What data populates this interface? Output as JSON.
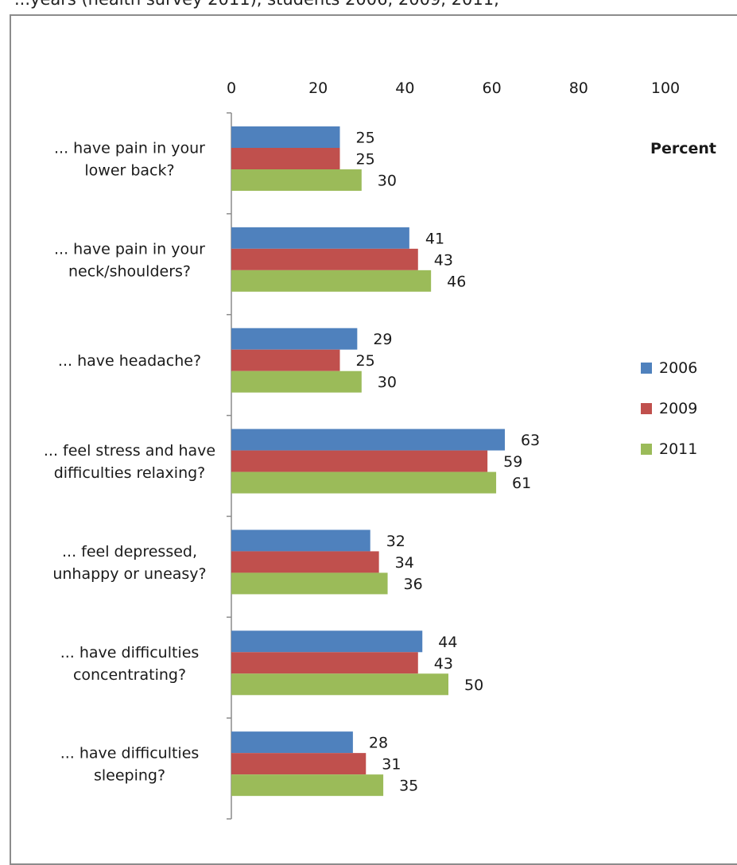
{
  "top_text": "...years (health survey 2011), students 2006, 2009, 2011,",
  "chart_data": {
    "type": "bar",
    "orientation": "horizontal",
    "title": "",
    "unit_label": "Percent",
    "xlim": [
      0,
      100
    ],
    "x_ticks": [
      0,
      20,
      40,
      60,
      80,
      100
    ],
    "tick_position": "top",
    "grid": false,
    "legend_position": "right",
    "categories": [
      [
        "... have pain in your",
        "lower back?"
      ],
      [
        "... have pain in your",
        "neck/shoulders?"
      ],
      [
        "... have headache?"
      ],
      [
        "... feel stress and have",
        "difficulties relaxing?"
      ],
      [
        "... feel depressed,",
        "unhappy or uneasy?"
      ],
      [
        "... have difficulties",
        "concentrating?"
      ],
      [
        "... have difficulties",
        "sleeping?"
      ]
    ],
    "series": [
      {
        "name": "2006",
        "color": "#4f81bd",
        "values": [
          25,
          41,
          29,
          63,
          32,
          44,
          28
        ]
      },
      {
        "name": "2009",
        "color": "#c0504d",
        "values": [
          25,
          43,
          25,
          59,
          34,
          43,
          31
        ]
      },
      {
        "name": "2011",
        "color": "#9bbb59",
        "values": [
          30,
          46,
          30,
          61,
          36,
          50,
          35
        ]
      }
    ]
  }
}
